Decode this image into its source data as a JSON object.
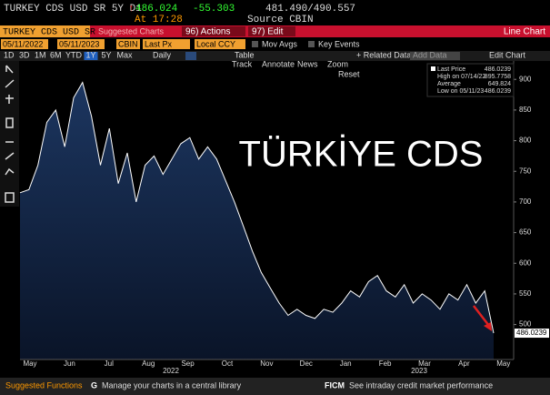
{
  "header": {
    "ticker": "TURKEY CDS USD SR 5Y D1",
    "arrow": "↑",
    "price": "486.024",
    "change": "-55.303",
    "bid_ask": "481.490/490.557",
    "time": "At 17:28",
    "source": "Source CBIN"
  },
  "menu": {
    "security": "TURKEY CDS USD SR",
    "suggested": "Suggested Charts",
    "actions": "96) Actions",
    "edit": "97) Edit",
    "chart_type": "Line Chart"
  },
  "settings": {
    "start": "05/11/2022",
    "end": "05/11/2023",
    "source": "CBIN",
    "field": "Last Px",
    "currency": "Local CCY",
    "mov_avgs": "Mov Avgs",
    "key_events": "Key Events"
  },
  "toolbar": {
    "periods": [
      "1D",
      "3D",
      "1M",
      "6M",
      "YTD",
      "1Y",
      "5Y",
      "Max"
    ],
    "active_period": 5,
    "frequency": "Daily",
    "table": "Table",
    "related": "+ Related Data",
    "add_data": "Add Data",
    "edit_chart": "Edit Chart"
  },
  "chart_tools": [
    "Track",
    "Annotate",
    "News",
    "Zoom"
  ],
  "reset": "Reset",
  "chart_data": {
    "type": "line",
    "annotation": "TÜRKİYE CDS",
    "x_labels": [
      "May",
      "Jun",
      "Jul",
      "Aug",
      "Sep",
      "Oct",
      "Nov",
      "Dec",
      "Jan",
      "Feb",
      "Mar",
      "Apr",
      "May"
    ],
    "year_labels": [
      "2022",
      "2023"
    ],
    "series": [
      {
        "name": "Last Price",
        "color": "#ffffff",
        "values": [
          715,
          720,
          760,
          830,
          850,
          790,
          870,
          895,
          840,
          760,
          820,
          730,
          780,
          700,
          760,
          775,
          745,
          770,
          795,
          805,
          770,
          790,
          770,
          735,
          700,
          660,
          620,
          585,
          560,
          535,
          515,
          525,
          515,
          510,
          525,
          520,
          535,
          555,
          545,
          570,
          580,
          555,
          545,
          565,
          535,
          550,
          540,
          525,
          550,
          540,
          565,
          535,
          555,
          486
        ]
      }
    ],
    "last_value_label": "486.0239",
    "legend_stats": [
      {
        "label": "Last Price",
        "value": "486.0239"
      },
      {
        "label": "High on 07/14/22",
        "value": "895.7758"
      },
      {
        "label": "Average",
        "value": "649.824"
      },
      {
        "label": "Low on 05/11/23",
        "value": "486.0239"
      }
    ],
    "ylim": [
      443,
      930
    ],
    "yticks": [
      500,
      550,
      600,
      650,
      700,
      750,
      800,
      850,
      900
    ]
  },
  "footer": {
    "suggested": "Suggested Functions",
    "g_code": "G",
    "g_text": "Manage your charts in a central library",
    "ficm_code": "FICM",
    "ficm_text": "See intraday credit market performance"
  }
}
